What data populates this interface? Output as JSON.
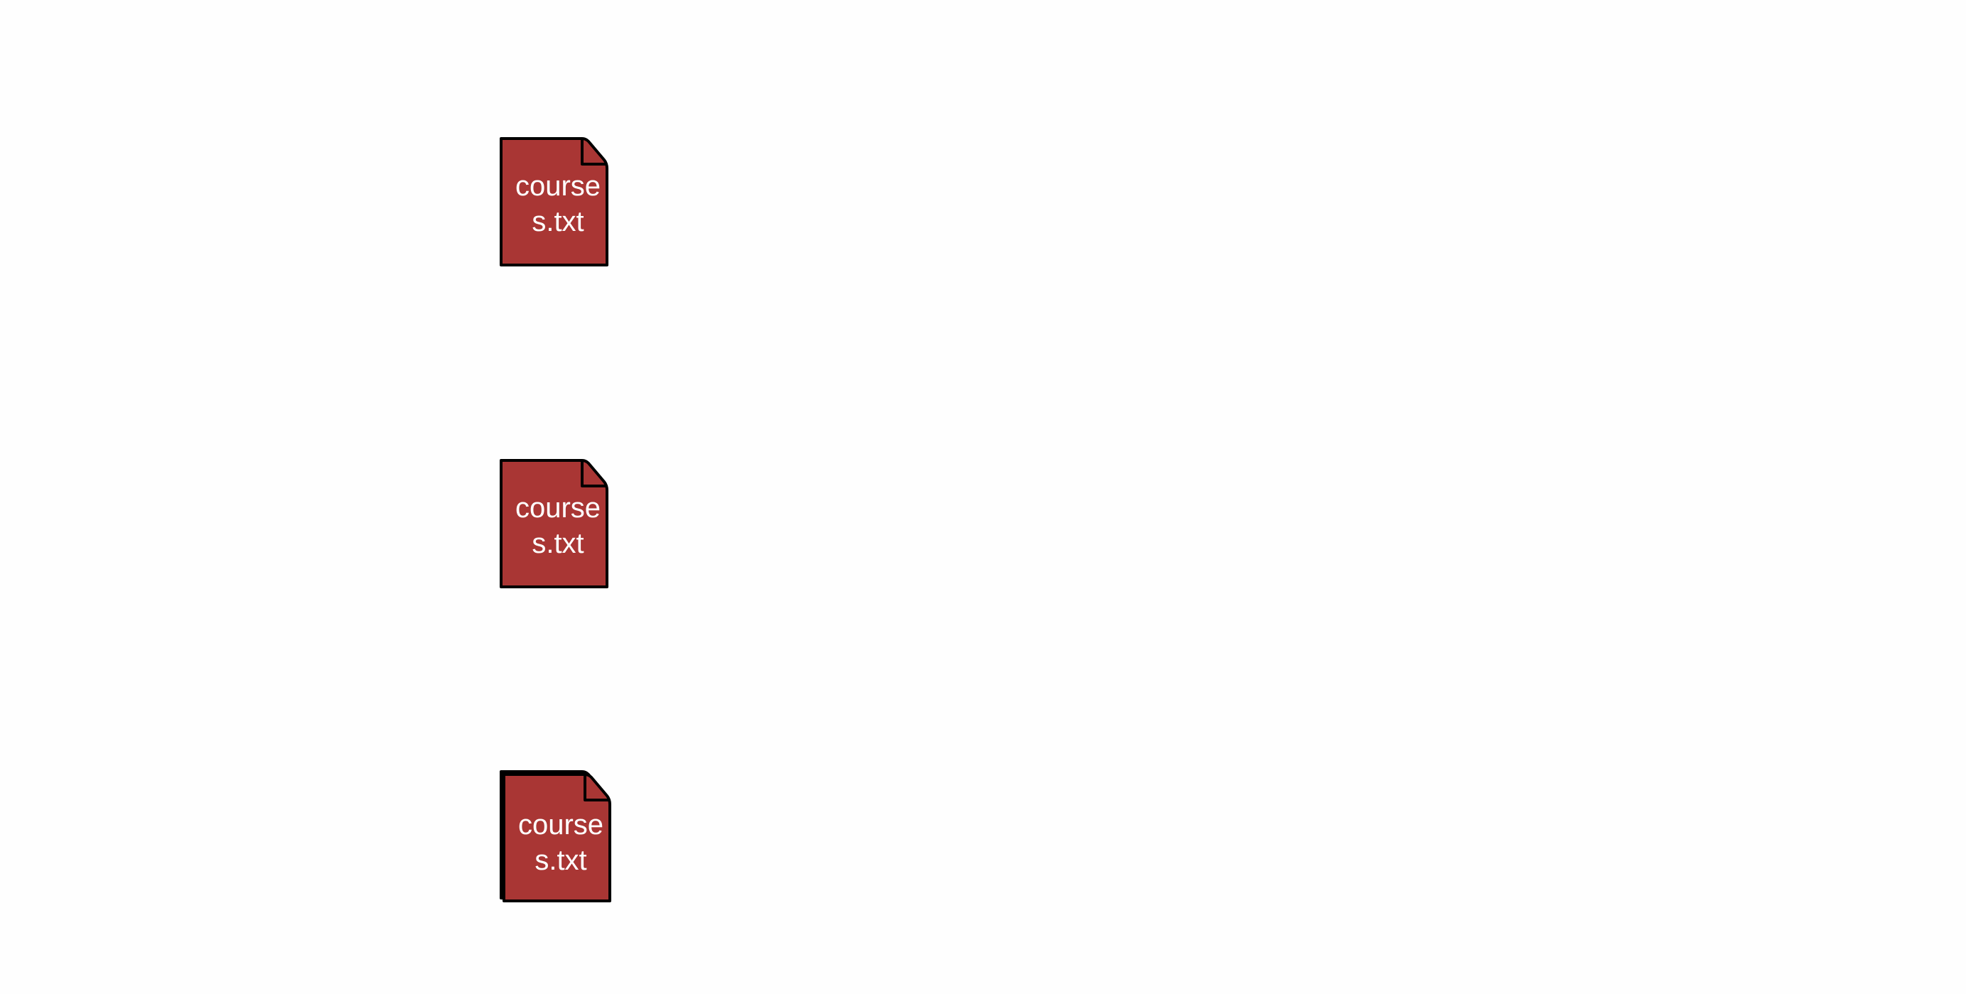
{
  "colors": {
    "background": "#fefefe",
    "file_fill": "#a93634",
    "file_stroke": "#000000",
    "label_text": "#ffffff"
  },
  "files": [
    {
      "name": "courses.txt",
      "icon": "document-icon",
      "stacked": false
    },
    {
      "name": "courses.txt",
      "icon": "document-icon",
      "stacked": false
    },
    {
      "name": "courses.txt",
      "icon": "document-icon",
      "stacked": true
    }
  ]
}
